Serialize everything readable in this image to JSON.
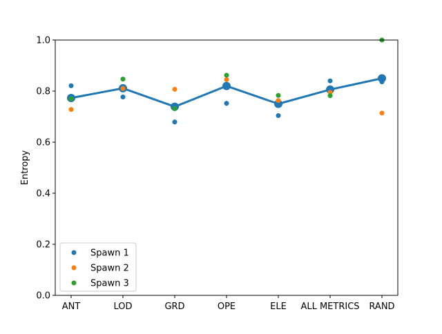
{
  "chart_data": {
    "type": "scatter",
    "categories": [
      "ANT",
      "LOD",
      "GRD",
      "OPE",
      "ELE",
      "ALL METRICS",
      "RAND"
    ],
    "ylabel": "Entropy",
    "xlabel": "",
    "ylim": [
      0.0,
      1.0
    ],
    "yticks": [
      "0.0",
      "0.2",
      "0.4",
      "0.6",
      "0.8",
      "1.0"
    ],
    "grid": false,
    "legend_position": "lower-left",
    "series": [
      {
        "name": "Spawn 1",
        "color": "#1f77b4",
        "values": [
          0.821,
          0.777,
          0.679,
          0.752,
          0.704,
          0.84,
          0.836
        ]
      },
      {
        "name": "Spawn 2",
        "color": "#ff7f0e",
        "values": [
          0.728,
          0.81,
          0.807,
          0.845,
          0.763,
          0.795,
          0.714
        ]
      },
      {
        "name": "Spawn 3",
        "color": "#2ca02c",
        "values": [
          0.77,
          0.847,
          0.731,
          0.862,
          0.783,
          0.782,
          1.0
        ]
      }
    ],
    "mean_line": {
      "color": "#1f77b4",
      "values": [
        0.773,
        0.811,
        0.739,
        0.82,
        0.75,
        0.806,
        0.85
      ]
    }
  }
}
